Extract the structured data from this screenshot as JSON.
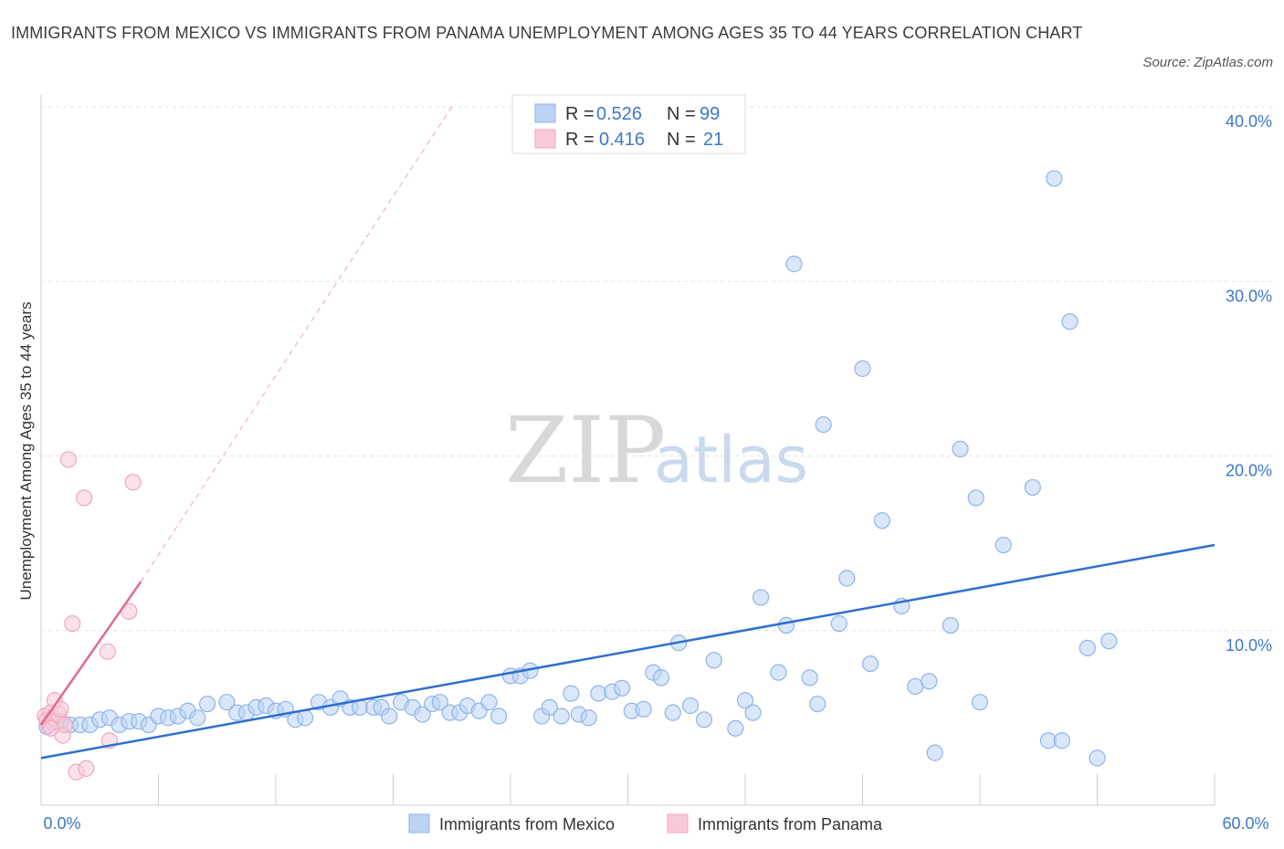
{
  "title": "IMMIGRANTS FROM MEXICO VS IMMIGRANTS FROM PANAMA UNEMPLOYMENT AMONG AGES 35 TO 44 YEARS CORRELATION CHART",
  "source": "Source: ZipAtlas.com",
  "watermark": {
    "zip": "ZIP",
    "atlas": "atlas"
  },
  "legend": {
    "r_label": "R =",
    "n_label": "N =",
    "rows": [
      {
        "series": "Immigrants from Mexico",
        "r": "0.526",
        "n": "99",
        "color": "#8fb4ea"
      },
      {
        "series": "Immigrants from Panama",
        "r": "0.416",
        "n": "21",
        "color": "#f0a6bd"
      }
    ]
  },
  "chart_data": {
    "type": "scatter",
    "title": "IMMIGRANTS FROM MEXICO VS IMMIGRANTS FROM PANAMA UNEMPLOYMENT AMONG AGES 35 TO 44 YEARS CORRELATION CHART",
    "xlabel": "",
    "ylabel": "Unemployment Among Ages 35 to 44 years",
    "xlim": [
      0,
      60
    ],
    "ylim": [
      0,
      40
    ],
    "x_tick_labels": [
      "0.0%",
      "60.0%"
    ],
    "y_ticks": [
      10,
      20,
      30,
      40
    ],
    "y_tick_labels": [
      "10.0%",
      "20.0%",
      "30.0%",
      "40.0%"
    ],
    "grid": true,
    "legend_position": "top-center",
    "series": [
      {
        "name": "Immigrants from Mexico",
        "color": "#8fb4ea",
        "line_color": "#2e6fcf",
        "trend": {
          "x": [
            0,
            60
          ],
          "y": [
            2.7,
            14.9
          ]
        },
        "points": [
          [
            0.3,
            4.5
          ],
          [
            0.6,
            4.7
          ],
          [
            1.0,
            4.8
          ],
          [
            1.5,
            4.6
          ],
          [
            2.0,
            4.6
          ],
          [
            2.5,
            4.6
          ],
          [
            3.0,
            4.9
          ],
          [
            3.5,
            5.0
          ],
          [
            4.0,
            4.6
          ],
          [
            4.5,
            4.8
          ],
          [
            5.0,
            4.8
          ],
          [
            5.5,
            4.6
          ],
          [
            6.0,
            5.1
          ],
          [
            6.5,
            5.0
          ],
          [
            7.0,
            5.1
          ],
          [
            7.5,
            5.4
          ],
          [
            8.0,
            5.0
          ],
          [
            8.5,
            5.8
          ],
          [
            9.5,
            5.9
          ],
          [
            10.0,
            5.3
          ],
          [
            10.5,
            5.3
          ],
          [
            11.0,
            5.6
          ],
          [
            11.5,
            5.7
          ],
          [
            12.0,
            5.4
          ],
          [
            12.5,
            5.5
          ],
          [
            13.0,
            4.9
          ],
          [
            13.5,
            5.0
          ],
          [
            14.2,
            5.9
          ],
          [
            14.8,
            5.6
          ],
          [
            15.3,
            6.1
          ],
          [
            15.8,
            5.6
          ],
          [
            16.3,
            5.6
          ],
          [
            17.0,
            5.6
          ],
          [
            17.4,
            5.6
          ],
          [
            17.8,
            5.1
          ],
          [
            18.4,
            5.9
          ],
          [
            19.0,
            5.6
          ],
          [
            19.5,
            5.2
          ],
          [
            20.0,
            5.8
          ],
          [
            20.4,
            5.9
          ],
          [
            20.9,
            5.3
          ],
          [
            21.4,
            5.3
          ],
          [
            21.8,
            5.7
          ],
          [
            22.4,
            5.4
          ],
          [
            22.9,
            5.9
          ],
          [
            23.4,
            5.1
          ],
          [
            24.0,
            7.4
          ],
          [
            24.5,
            7.4
          ],
          [
            25.0,
            7.7
          ],
          [
            25.6,
            5.1
          ],
          [
            26.0,
            5.6
          ],
          [
            26.6,
            5.1
          ],
          [
            27.1,
            6.4
          ],
          [
            27.5,
            5.2
          ],
          [
            28.0,
            5.0
          ],
          [
            28.5,
            6.4
          ],
          [
            29.2,
            6.5
          ],
          [
            29.7,
            6.7
          ],
          [
            30.2,
            5.4
          ],
          [
            30.8,
            5.5
          ],
          [
            31.3,
            7.6
          ],
          [
            31.7,
            7.3
          ],
          [
            32.3,
            5.3
          ],
          [
            32.6,
            9.3
          ],
          [
            33.2,
            5.7
          ],
          [
            33.9,
            4.9
          ],
          [
            34.4,
            8.3
          ],
          [
            35.5,
            4.4
          ],
          [
            36.0,
            6.0
          ],
          [
            36.4,
            5.3
          ],
          [
            36.8,
            11.9
          ],
          [
            37.7,
            7.6
          ],
          [
            38.1,
            10.3
          ],
          [
            38.5,
            31.0
          ],
          [
            39.3,
            7.3
          ],
          [
            39.7,
            5.8
          ],
          [
            40.0,
            21.8
          ],
          [
            40.8,
            10.4
          ],
          [
            41.2,
            13.0
          ],
          [
            42.0,
            25.0
          ],
          [
            42.4,
            8.1
          ],
          [
            43.0,
            16.3
          ],
          [
            44.0,
            11.4
          ],
          [
            44.7,
            6.8
          ],
          [
            45.4,
            7.1
          ],
          [
            45.7,
            3.0
          ],
          [
            46.5,
            10.3
          ],
          [
            47.0,
            20.4
          ],
          [
            47.8,
            17.6
          ],
          [
            48.0,
            5.9
          ],
          [
            49.2,
            14.9
          ],
          [
            50.7,
            18.2
          ],
          [
            51.5,
            3.7
          ],
          [
            51.8,
            35.9
          ],
          [
            52.6,
            27.7
          ],
          [
            53.5,
            9.0
          ],
          [
            54.0,
            2.7
          ],
          [
            54.6,
            9.4
          ],
          [
            52.2,
            3.7
          ]
        ]
      },
      {
        "name": "Immigrants from Panama",
        "color": "#f0a6bd",
        "line_color": "#e06a92",
        "trend": {
          "x": [
            0,
            5.1
          ],
          "y": [
            4.6,
            12.8
          ]
        },
        "trend_extension": {
          "x": [
            5.1,
            21.0
          ],
          "y": [
            12.8,
            40.0
          ]
        },
        "points": [
          [
            0.2,
            5.1
          ],
          [
            0.3,
            4.9
          ],
          [
            0.4,
            4.6
          ],
          [
            0.5,
            5.3
          ],
          [
            0.6,
            5.0
          ],
          [
            0.7,
            6.0
          ],
          [
            0.8,
            4.8
          ],
          [
            0.9,
            5.2
          ],
          [
            1.0,
            5.5
          ],
          [
            1.1,
            4.0
          ],
          [
            1.2,
            4.6
          ],
          [
            1.4,
            19.8
          ],
          [
            1.6,
            10.4
          ],
          [
            1.8,
            1.9
          ],
          [
            2.2,
            17.6
          ],
          [
            2.3,
            2.1
          ],
          [
            3.4,
            8.8
          ],
          [
            3.5,
            3.7
          ],
          [
            4.5,
            11.1
          ],
          [
            4.7,
            18.5
          ],
          [
            0.5,
            4.4
          ]
        ]
      }
    ]
  }
}
